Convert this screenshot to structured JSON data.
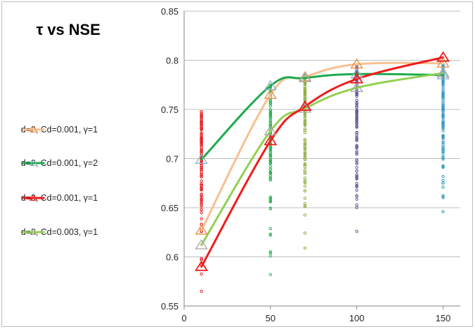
{
  "chart_data": {
    "type": "scatter",
    "title": "τ  vs NSE",
    "xlabel": "",
    "ylabel": "",
    "xlim": [
      0,
      160
    ],
    "ylim": [
      0.55,
      0.85
    ],
    "xticks": [
      0,
      50,
      100,
      150
    ],
    "yticks": [
      0.55,
      0.6,
      0.65,
      0.7,
      0.75,
      0.8,
      0.85
    ],
    "xtick_labels": [
      "0",
      "50",
      "100",
      "150"
    ],
    "ytick_labels": [
      "0.55",
      "0.6",
      "0.65",
      "0.7",
      "0.75",
      "0.8",
      "0.85"
    ],
    "grid": "horizontal",
    "legend_position": "left",
    "series": [
      {
        "name": "d=2, Cd=0.001, γ=1",
        "color": "#f9c08f",
        "marker": "triangle",
        "x": [
          10,
          50,
          70,
          100,
          150
        ],
        "y": [
          0.627,
          0.765,
          0.783,
          0.796,
          0.797
        ]
      },
      {
        "name": "d=2, Cd=0.001, γ=2",
        "color": "#1eaa4d",
        "marker": "triangle",
        "x": [
          10,
          50,
          70,
          100,
          150
        ],
        "y": [
          0.699,
          0.774,
          0.782,
          0.786,
          0.785
        ]
      },
      {
        "name": "d=3, Cd=0.001, γ=1",
        "color": "#ee1c1c",
        "marker": "triangle",
        "x": [
          10,
          50,
          70,
          100,
          150
        ],
        "y": [
          0.59,
          0.718,
          0.753,
          0.781,
          0.803
        ]
      },
      {
        "name": "d=3, Cd=0.003, γ=1",
        "color": "#92d050",
        "marker": "triangle",
        "x": [
          10,
          50,
          70,
          100,
          150
        ],
        "y": [
          0.612,
          0.728,
          0.751,
          0.772,
          0.787
        ]
      }
    ],
    "samples": [
      {
        "x": 10,
        "color": "#e8262a",
        "min": 0.565,
        "max": 0.748
      },
      {
        "x": 50,
        "color": "#2fb356",
        "min": 0.582,
        "max": 0.775
      },
      {
        "x": 70,
        "color": "#8fae45",
        "min": 0.609,
        "max": 0.785
      },
      {
        "x": 100,
        "color": "#6b5a9a",
        "min": 0.626,
        "max": 0.795
      },
      {
        "x": 150,
        "color": "#3a9bc1",
        "min": 0.646,
        "max": 0.797
      }
    ]
  }
}
